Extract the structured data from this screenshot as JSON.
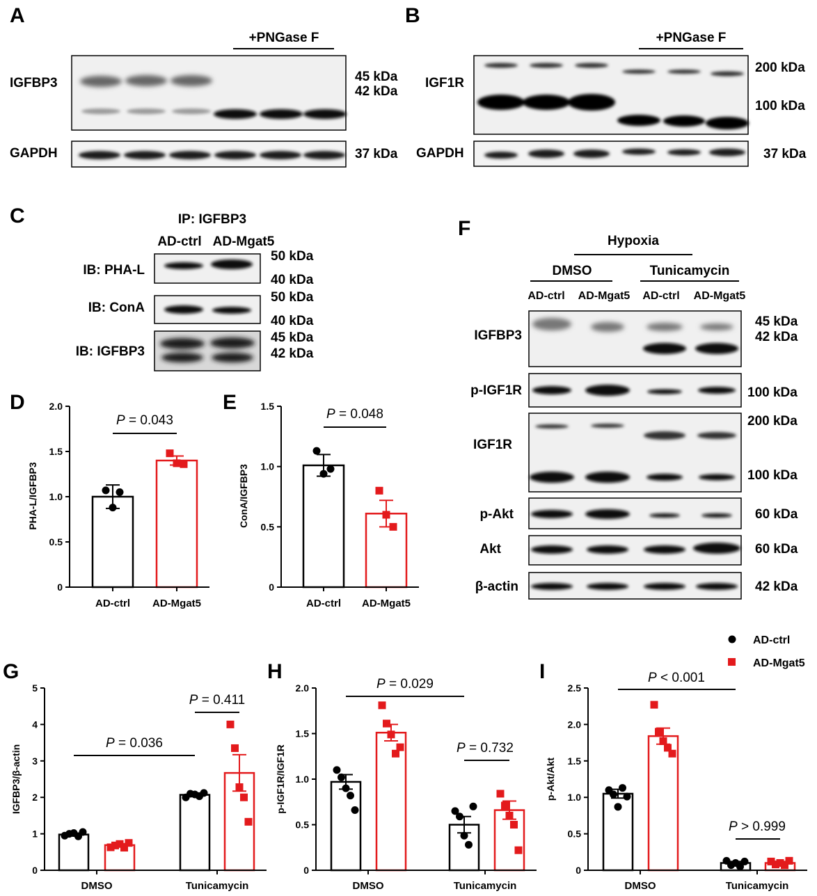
{
  "panels": {
    "A": {
      "letter": "A",
      "treatment": "+PNGase F",
      "rows": [
        {
          "label": "IGFBP3",
          "kda": [
            "45 kDa",
            "42 kDa"
          ]
        },
        {
          "label": "GAPDH",
          "kda": [
            "37 kDa"
          ]
        }
      ]
    },
    "B": {
      "letter": "B",
      "treatment": "+PNGase F",
      "rows": [
        {
          "label": "IGF1R",
          "kda": [
            "200 kDa",
            "100 kDa"
          ]
        },
        {
          "label": "GAPDH",
          "kda": [
            "37 kDa"
          ]
        }
      ]
    },
    "C": {
      "letter": "C",
      "ip": "IP: IGFBP3",
      "groups": [
        "AD-ctrl",
        "AD-Mgat5"
      ],
      "rows": [
        {
          "label": "IB: PHA-L",
          "kda": [
            "50 kDa",
            "40 kDa"
          ]
        },
        {
          "label": "IB: ConA",
          "kda": [
            "50 kDa",
            "40 kDa"
          ]
        },
        {
          "label": "IB: IGFBP3",
          "kda": [
            "45 kDa",
            "42 kDa"
          ]
        }
      ]
    },
    "F": {
      "letter": "F",
      "condition": "Hypoxia",
      "treatments": [
        "DMSO",
        "Tunicamycin"
      ],
      "groups": [
        "AD-ctrl",
        "AD-Mgat5",
        "AD-ctrl",
        "AD-Mgat5"
      ],
      "rows": [
        {
          "label": "IGFBP3",
          "kda": [
            "45 kDa",
            "42 kDa"
          ]
        },
        {
          "label": "p-IGF1R",
          "kda": [
            "100 kDa"
          ]
        },
        {
          "label": "IGF1R",
          "kda": [
            "200 kDa",
            "100 kDa"
          ]
        },
        {
          "label": "p-Akt",
          "kda": [
            "60 kDa"
          ]
        },
        {
          "label": "Akt",
          "kda": [
            "60 kDa"
          ]
        },
        {
          "label": "β-actin",
          "kda": [
            "42 kDa"
          ]
        }
      ]
    }
  },
  "legend": {
    "items": [
      {
        "label": "AD-ctrl",
        "color": "#000000",
        "shape": "circle"
      },
      {
        "label": "AD-Mgat5",
        "color": "#e31a1c",
        "shape": "square"
      }
    ]
  },
  "colors": {
    "ctrl": "#000000",
    "mgat5": "#e31a1c"
  },
  "chart_data": [
    {
      "panel": "D",
      "type": "bar",
      "categories": [
        "AD-ctrl",
        "AD-Mgat5"
      ],
      "values": [
        1.0,
        1.4
      ],
      "sem": [
        0.13,
        0.05
      ],
      "points": [
        [
          1.07,
          0.88,
          1.05
        ],
        [
          1.48,
          1.37,
          1.36
        ]
      ],
      "ylabel": "PHA-L/IGFBP3",
      "ylim": [
        0,
        2.0
      ],
      "yticks": [
        "0",
        "0.5",
        "1.0",
        "1.5",
        "2.0"
      ],
      "annotations": [
        {
          "p_label": "P",
          "p_text": " = 0.043"
        }
      ]
    },
    {
      "panel": "E",
      "type": "bar",
      "categories": [
        "AD-ctrl",
        "AD-Mgat5"
      ],
      "values": [
        1.01,
        0.61
      ],
      "sem": [
        0.09,
        0.11
      ],
      "points": [
        [
          1.13,
          0.94,
          0.98
        ],
        [
          0.8,
          0.6,
          0.5
        ]
      ],
      "ylabel": "ConA/IGFBP3",
      "ylim": [
        0,
        1.5
      ],
      "yticks": [
        "0",
        "0.5",
        "1.0",
        "1.5"
      ],
      "annotations": [
        {
          "p_label": "P",
          "p_text": " = 0.048"
        }
      ]
    },
    {
      "panel": "G",
      "type": "bar",
      "categories": [
        "DMSO",
        "Tunicamycin"
      ],
      "series": [
        {
          "name": "AD-ctrl",
          "values": [
            0.98,
            2.07
          ],
          "sem": [
            0.04,
            0.05
          ],
          "points": [
            [
              0.95,
              1.0,
              1.02,
              0.93,
              1.05
            ],
            [
              2.0,
              2.1,
              2.08,
              2.03,
              2.12
            ]
          ]
        },
        {
          "name": "AD-Mgat5",
          "values": [
            0.69,
            2.67
          ],
          "sem": [
            0.04,
            0.5
          ],
          "points": [
            [
              0.63,
              0.68,
              0.72,
              0.62,
              0.75
            ],
            [
              4.0,
              3.35,
              2.28,
              2.0,
              1.33
            ]
          ]
        }
      ],
      "ylabel": "IGFBP3/β-actin",
      "ylim": [
        0,
        5
      ],
      "yticks": [
        "0",
        "1",
        "2",
        "3",
        "4",
        "5"
      ],
      "annotations": [
        {
          "p_label": "P",
          "p_text": " = 0.036"
        },
        {
          "p_label": "P",
          "p_text": " = 0.411"
        }
      ]
    },
    {
      "panel": "H",
      "type": "bar",
      "categories": [
        "DMSO",
        "Tunicamycin"
      ],
      "series": [
        {
          "name": "AD-ctrl",
          "values": [
            0.97,
            0.5
          ],
          "sem": [
            0.08,
            0.09
          ],
          "points": [
            [
              1.1,
              1.02,
              0.9,
              0.82,
              0.66
            ],
            [
              0.65,
              0.59,
              0.38,
              0.28,
              0.7
            ]
          ]
        },
        {
          "name": "AD-Mgat5",
          "values": [
            1.51,
            0.66
          ],
          "sem": [
            0.09,
            0.1
          ],
          "points": [
            [
              1.81,
              1.61,
              1.49,
              1.28,
              1.35
            ],
            [
              0.84,
              0.71,
              0.6,
              0.5,
              0.22
            ]
          ]
        }
      ],
      "ylabel": "p-IGF1R/IGF1R",
      "ylim": [
        0,
        2.0
      ],
      "yticks": [
        "0",
        "0.5",
        "1.0",
        "1.5",
        "2.0"
      ],
      "annotations": [
        {
          "p_label": "P",
          "p_text": " = 0.029"
        },
        {
          "p_label": "P",
          "p_text": " = 0.732"
        }
      ]
    },
    {
      "panel": "I",
      "type": "bar",
      "categories": [
        "DMSO",
        "Tunicamycin"
      ],
      "series": [
        {
          "name": "AD-ctrl",
          "values": [
            1.05,
            0.1
          ],
          "sem": [
            0.06,
            0.02
          ],
          "points": [
            [
              1.1,
              1.04,
              0.87,
              1.13,
              1.01
            ],
            [
              0.13,
              0.07,
              0.1,
              0.05,
              0.12
            ]
          ]
        },
        {
          "name": "AD-Mgat5",
          "values": [
            1.84,
            0.1
          ],
          "sem": [
            0.11,
            0.02
          ],
          "points": [
            [
              2.27,
              1.9,
              1.77,
              1.68,
              1.6
            ],
            [
              0.12,
              0.08,
              0.1,
              0.07,
              0.13
            ]
          ]
        }
      ],
      "ylabel": "p-Akt/Akt",
      "ylim": [
        0,
        2.5
      ],
      "yticks": [
        "0",
        "0.5",
        "1.0",
        "1.5",
        "2.0",
        "2.5"
      ],
      "annotations": [
        {
          "p_label": "P",
          "p_text": " < 0.001"
        },
        {
          "p_label": "P",
          "p_text": " > 0.999"
        }
      ]
    }
  ]
}
